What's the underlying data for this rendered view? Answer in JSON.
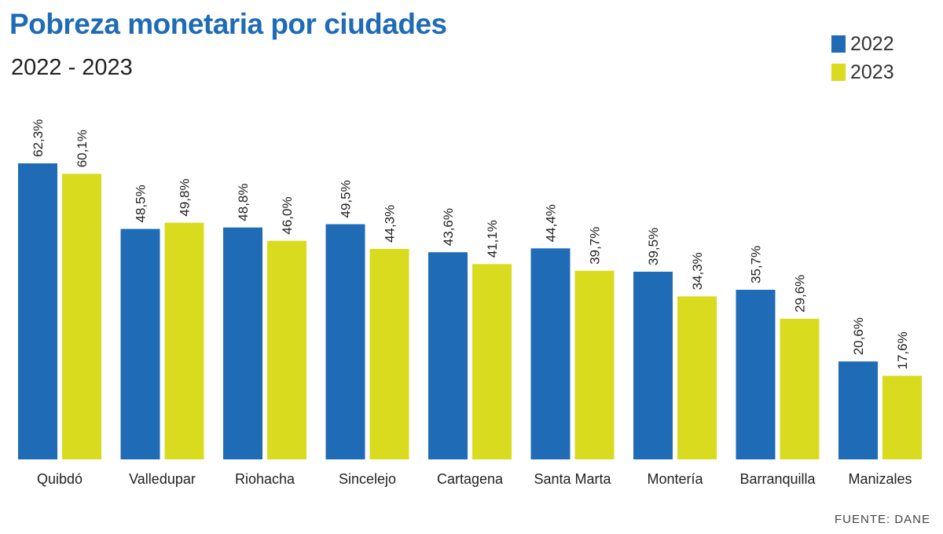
{
  "chart_data": {
    "type": "bar",
    "title": "Pobreza monetaria por ciudades",
    "subtitle": "2022 - 2023",
    "categories": [
      "Quibdó",
      "Valledupar",
      "Riohacha",
      "Sincelejo",
      "Cartagena",
      "Santa Marta",
      "Montería",
      "Barranquilla",
      "Manizales"
    ],
    "series": [
      {
        "name": "2022",
        "color": "#1f6bb5",
        "values": [
          62.3,
          48.5,
          48.8,
          49.5,
          43.6,
          44.4,
          39.5,
          35.7,
          20.6
        ],
        "labels": [
          "62,3%",
          "48,5%",
          "48,8%",
          "49,5%",
          "43,6%",
          "44,4%",
          "39,5%",
          "35,7%",
          "20,6%"
        ]
      },
      {
        "name": "2023",
        "color": "#d8db1e",
        "values": [
          60.1,
          49.8,
          46.0,
          44.3,
          41.1,
          39.7,
          34.3,
          29.6,
          17.6
        ],
        "labels": [
          "60,1%",
          "49,8%",
          "46,0%",
          "44,3%",
          "41,1%",
          "39,7%",
          "34,3%",
          "29,6%",
          "17,6%"
        ]
      }
    ],
    "ylim": [
      0,
      62.3
    ],
    "legend_position": "top-right",
    "grid": false,
    "source": "FUENTE: DANE"
  }
}
